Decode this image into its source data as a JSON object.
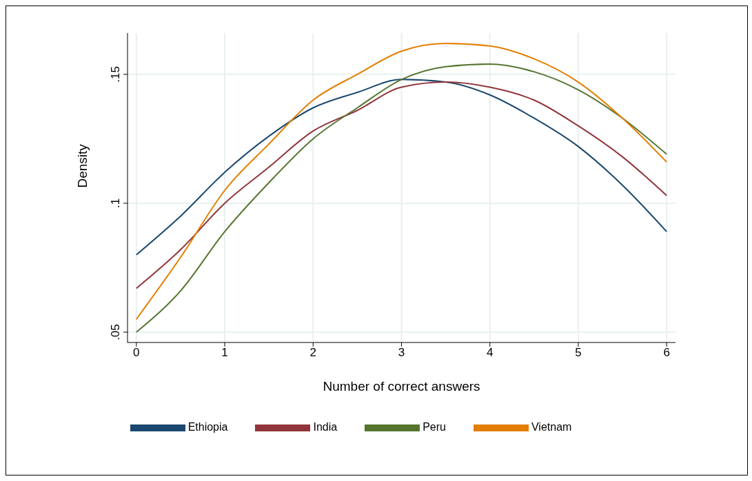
{
  "chart_data": {
    "type": "line",
    "xlabel": "Number of correct answers",
    "ylabel": "Density",
    "x": [
      0,
      0.5,
      1,
      1.5,
      2,
      2.5,
      3,
      3.5,
      4,
      4.5,
      5,
      5.5,
      6
    ],
    "series": [
      {
        "name": "Ethiopia",
        "color": "#1a476f",
        "values": [
          0.08,
          0.095,
          0.112,
          0.126,
          0.137,
          0.143,
          0.148,
          0.147,
          0.142,
          0.133,
          0.122,
          0.107,
          0.089
        ]
      },
      {
        "name": "India",
        "color": "#90353b",
        "values": [
          0.067,
          0.082,
          0.1,
          0.114,
          0.128,
          0.136,
          0.145,
          0.147,
          0.145,
          0.14,
          0.13,
          0.118,
          0.103
        ]
      },
      {
        "name": "Peru",
        "color": "#55752f",
        "values": [
          0.05,
          0.066,
          0.089,
          0.108,
          0.125,
          0.137,
          0.148,
          0.153,
          0.154,
          0.151,
          0.144,
          0.133,
          0.119
        ]
      },
      {
        "name": "Vietnam",
        "color": "#e37e00",
        "values": [
          0.055,
          0.079,
          0.105,
          0.123,
          0.14,
          0.15,
          0.159,
          0.162,
          0.161,
          0.156,
          0.147,
          0.133,
          0.116
        ]
      }
    ],
    "xlim": [
      -0.1,
      6.1
    ],
    "xticks": [
      0,
      1,
      2,
      3,
      4,
      5,
      6
    ],
    "ylim": [
      0.046,
      0.166
    ],
    "yticks": [
      {
        "value": 0.05,
        "label": ".05"
      },
      {
        "value": 0.1,
        "label": ".1"
      },
      {
        "value": 0.15,
        "label": ".15"
      }
    ],
    "grid": true,
    "legend": "bottom",
    "marker": "none",
    "line_style": "solid"
  }
}
